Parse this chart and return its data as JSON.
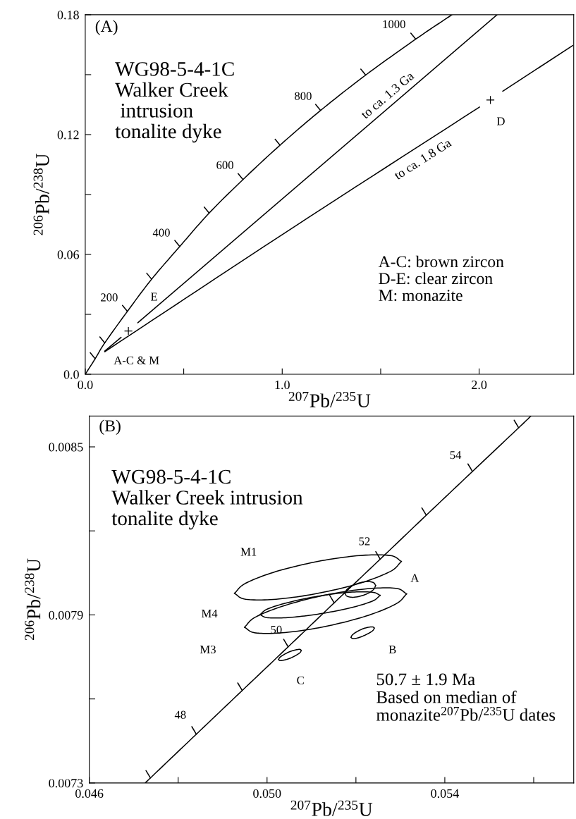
{
  "chart_data": [
    {
      "type": "line",
      "xlabel": "$^{207}$Pb/$^{235}$U",
      "ylabel": "$^{206}$Pb/$^{238}$U",
      "xlim": [
        0,
        2.48
      ],
      "ylim": [
        0,
        0.18
      ],
      "xticks": [
        {
          "value": 0,
          "label": "0.0"
        },
        {
          "value": 0.5,
          "label": null
        },
        {
          "value": 1.0,
          "label": "1.0"
        },
        {
          "value": 1.5,
          "label": null
        },
        {
          "value": 2.0,
          "label": "2.0"
        }
      ],
      "yticks": [
        {
          "value": 0,
          "label": "0.0"
        },
        {
          "value": 0.03,
          "label": null
        },
        {
          "value": 0.06,
          "label": "0.06"
        },
        {
          "value": 0.09,
          "label": null
        },
        {
          "value": 0.12,
          "label": "0.12"
        },
        {
          "value": 0.15,
          "label": null
        },
        {
          "value": 0.18,
          "label": "0.18"
        }
      ],
      "series": [
        {
          "type": "line",
          "color": "#000000",
          "x": [
            0,
            0.0505,
            0.099,
            0.214,
            0.337,
            0.48,
            0.629,
            0.801,
            0.989,
            1.195,
            1.424,
            1.678,
            1.862
          ],
          "values": [
            0,
            0.0078,
            0.0157,
            0.0315,
            0.0476,
            0.064,
            0.0807,
            0.0975,
            0.1147,
            0.1321,
            0.1498,
            0.1678,
            0.18
          ]
        },
        {
          "type": "line",
          "color": "#000000",
          "x": [
            0.0505,
            0.0255,
            null,
            0.099,
            0.074,
            null,
            0.214,
            0.189,
            null,
            0.337,
            0.312,
            null,
            0.48,
            0.455,
            null,
            0.629,
            0.604,
            null,
            0.801,
            0.776,
            null,
            0.989,
            0.964,
            null,
            1.195,
            1.17,
            null,
            1.424,
            1.399,
            null,
            1.678,
            1.653
          ],
          "values": [
            0.0078,
            0.0108,
            null,
            0.0157,
            0.0187,
            null,
            0.0315,
            0.0345,
            null,
            0.0476,
            0.0506,
            null,
            0.064,
            0.067,
            null,
            0.0807,
            0.0837,
            null,
            0.0975,
            0.1005,
            null,
            0.1147,
            0.1177,
            null,
            0.1321,
            0.1351,
            null,
            0.1498,
            0.1528,
            null,
            0.1678,
            0.1708
          ]
        },
        {
          "type": "line",
          "color": "#000000",
          "x": [
            0.267,
            2.091
          ],
          "values": [
            0.0258,
            0.18
          ]
        },
        {
          "type": "line",
          "color": "#000000",
          "x": [
            0.099,
            1.062,
            2.002,
            null,
            2.12,
            2.475
          ],
          "values": [
            0.0113,
            0.0739,
            0.1338,
            null,
            0.1417,
            0.1646
          ]
        },
        {
          "type": "line",
          "color": "#000000",
          "x": [
            0.099,
            0.182
          ],
          "values": [
            0.0116,
            0.0185
          ]
        },
        {
          "type": "scatter",
          "color": "#000000",
          "marker": "cross",
          "x": [
            0.219,
            2.057
          ],
          "values": [
            0.0217,
            0.1373
          ]
        }
      ],
      "annotations": [
        "(A)",
        "WG98-5-4-1C\nWalker Creek\n intrusion\ntonalite dyke",
        "A-C: brown zircon\nD-E: clear zircon\nM: monazite",
        "200",
        "400",
        "600",
        "800",
        "1000",
        "to ca. 1.3 Ga",
        "to ca. 1.8 Ga",
        "E",
        "D",
        "A-C & M"
      ]
    },
    {
      "type": "line",
      "xlabel": "$^{207}$Pb/$^{235}$U",
      "ylabel": "$^{206}$Pb/$^{238}$U",
      "xlim": [
        0.046,
        0.0569
      ],
      "ylim": [
        0.0073,
        0.00861
      ],
      "xticks": [
        {
          "value": 0.046,
          "label": "0.046"
        },
        {
          "value": 0.048,
          "label": null
        },
        {
          "value": 0.05,
          "label": "0.050"
        },
        {
          "value": 0.052,
          "label": null
        },
        {
          "value": 0.054,
          "label": "0.054"
        },
        {
          "value": 0.056,
          "label": null
        }
      ],
      "yticks": [
        {
          "value": 0.0073,
          "label": "0.0073"
        },
        {
          "value": 0.0076,
          "label": null
        },
        {
          "value": 0.0079,
          "label": "0.0079"
        },
        {
          "value": 0.0082,
          "label": null
        },
        {
          "value": 0.0085,
          "label": "0.0085"
        }
      ],
      "series": [
        {
          "type": "line",
          "color": "#000000",
          "x": [
            0.04726,
            0.047376,
            0.048408,
            0.049441,
            0.050475,
            0.05151,
            0.052546,
            0.053583,
            0.054621,
            0.055661,
            0.055938
          ],
          "values": [
            0.0073,
            0.007318,
            0.007474,
            0.00763,
            0.007786,
            0.007943,
            0.008099,
            0.008256,
            0.008412,
            0.008568,
            0.00861
          ]
        },
        {
          "type": "line",
          "color": "#000000",
          "x": [
            0.047376,
            0.047276,
            null,
            0.048408,
            0.048308,
            null,
            0.049441,
            0.049341,
            null,
            0.050475,
            0.050375,
            null,
            0.05151,
            0.05141,
            null,
            0.052546,
            0.052446,
            null,
            0.053583,
            0.053483,
            null,
            0.054621,
            0.054521,
            null,
            0.055661,
            0.055561
          ],
          "values": [
            0.007318,
            0.007344,
            null,
            0.007474,
            0.007501,
            null,
            0.00763,
            0.007657,
            null,
            0.007786,
            0.007813,
            null,
            0.007943,
            0.00797,
            null,
            0.008099,
            0.008126,
            null,
            0.008256,
            0.008282,
            null,
            0.008412,
            0.008439,
            null,
            0.008568,
            0.008595
          ]
        },
        {
          "color": "#000000",
          "x": [
            0.053024,
            0.052772,
            0.052085,
            0.051145,
            0.050205,
            0.049518,
            0.049266,
            null,
            0.049266,
            0.049518,
            0.050205,
            0.051145,
            0.052085,
            0.052772,
            0.053024
          ],
          "values": [
            0.008091,
            0.008112,
            0.008112,
            0.008091,
            0.008055,
            0.008013,
            0.007977,
            null,
            0.007977,
            0.007956,
            0.007956,
            0.007977,
            0.008013,
            0.008055,
            0.008091
          ]
        },
        {
          "color": "#000000",
          "x": [
            0.052547,
            0.052365,
            0.05187,
            0.051193,
            0.050516,
            0.050021,
            0.04984,
            null,
            0.04984,
            0.050021,
            0.050516,
            0.051193,
            0.05187,
            0.052365,
            0.052547
          ],
          "values": [
            0.00797,
            0.007981,
            0.007981,
            0.007968,
            0.007946,
            0.007922,
            0.007901,
            null,
            0.007901,
            0.00789,
            0.007891,
            0.007904,
            0.007925,
            0.007949,
            0.00797
          ]
        },
        {
          "color": "#000000",
          "x": [
            0.053141,
            0.052897,
            0.052229,
            0.051317,
            0.050405,
            0.049737,
            0.049493,
            null,
            0.049493,
            0.049737,
            0.050405,
            0.051317,
            0.052229,
            0.052897,
            0.053141
          ],
          "values": [
            0.007975,
            0.007995,
            0.007993,
            0.007971,
            0.007934,
            0.007892,
            0.007856,
            null,
            0.007856,
            0.007836,
            0.007837,
            0.007859,
            0.007896,
            0.007939,
            0.007975
          ]
        },
        {
          "color": "#000000",
          "x": [
            0.052444,
            0.052398,
            0.052271,
            0.052099,
            0.051926,
            0.051799,
            0.051753,
            null,
            0.051753,
            0.051799,
            0.051926,
            0.052099,
            0.052271,
            0.052398,
            0.052444
          ],
          "values": [
            0.008005,
            0.008015,
            0.008019,
            0.008015,
            0.008005,
            0.007991,
            0.007977,
            null,
            0.007977,
            0.007967,
            0.007963,
            0.007967,
            0.007977,
            0.007991,
            0.008005
          ]
        },
        {
          "color": "#000000",
          "x": [
            0.052414,
            0.052379,
            0.052283,
            0.052151,
            0.05202,
            0.051923,
            0.051888,
            null,
            0.051888,
            0.051923,
            0.05202,
            0.052151,
            0.052283,
            0.052379,
            0.052414
          ],
          "values": [
            0.007853,
            0.007857,
            0.007856,
            0.00785,
            0.00784,
            0.007829,
            0.00782,
            null,
            0.00782,
            0.007816,
            0.007817,
            0.007824,
            0.007834,
            0.007844,
            0.007853
          ]
        },
        {
          "color": "#000000",
          "x": [
            0.050772,
            0.050738,
            0.050644,
            0.050515,
            0.050387,
            0.050292,
            0.050258,
            null,
            0.050258,
            0.050292,
            0.050387,
            0.050515,
            0.050644,
            0.050738,
            0.050772
          ],
          "values": [
            0.007773,
            0.007777,
            0.007775,
            0.007769,
            0.007759,
            0.007749,
            0.007741,
            null,
            0.007741,
            0.007737,
            0.007739,
            0.007745,
            0.007755,
            0.007765,
            0.007773
          ]
        }
      ],
      "annotations": [
        "(B)",
        "WG98-5-4-1C\nWalker Creek intrusion\ntonalite dyke",
        "50.7 ± 1.9 Ma\nBased on median of\nmonazite$^{207}$Pb/$^{235}$U dates",
        "48",
        "50",
        "52",
        "54",
        "M1",
        "M4",
        "M3",
        "A",
        "B",
        "C"
      ]
    }
  ]
}
